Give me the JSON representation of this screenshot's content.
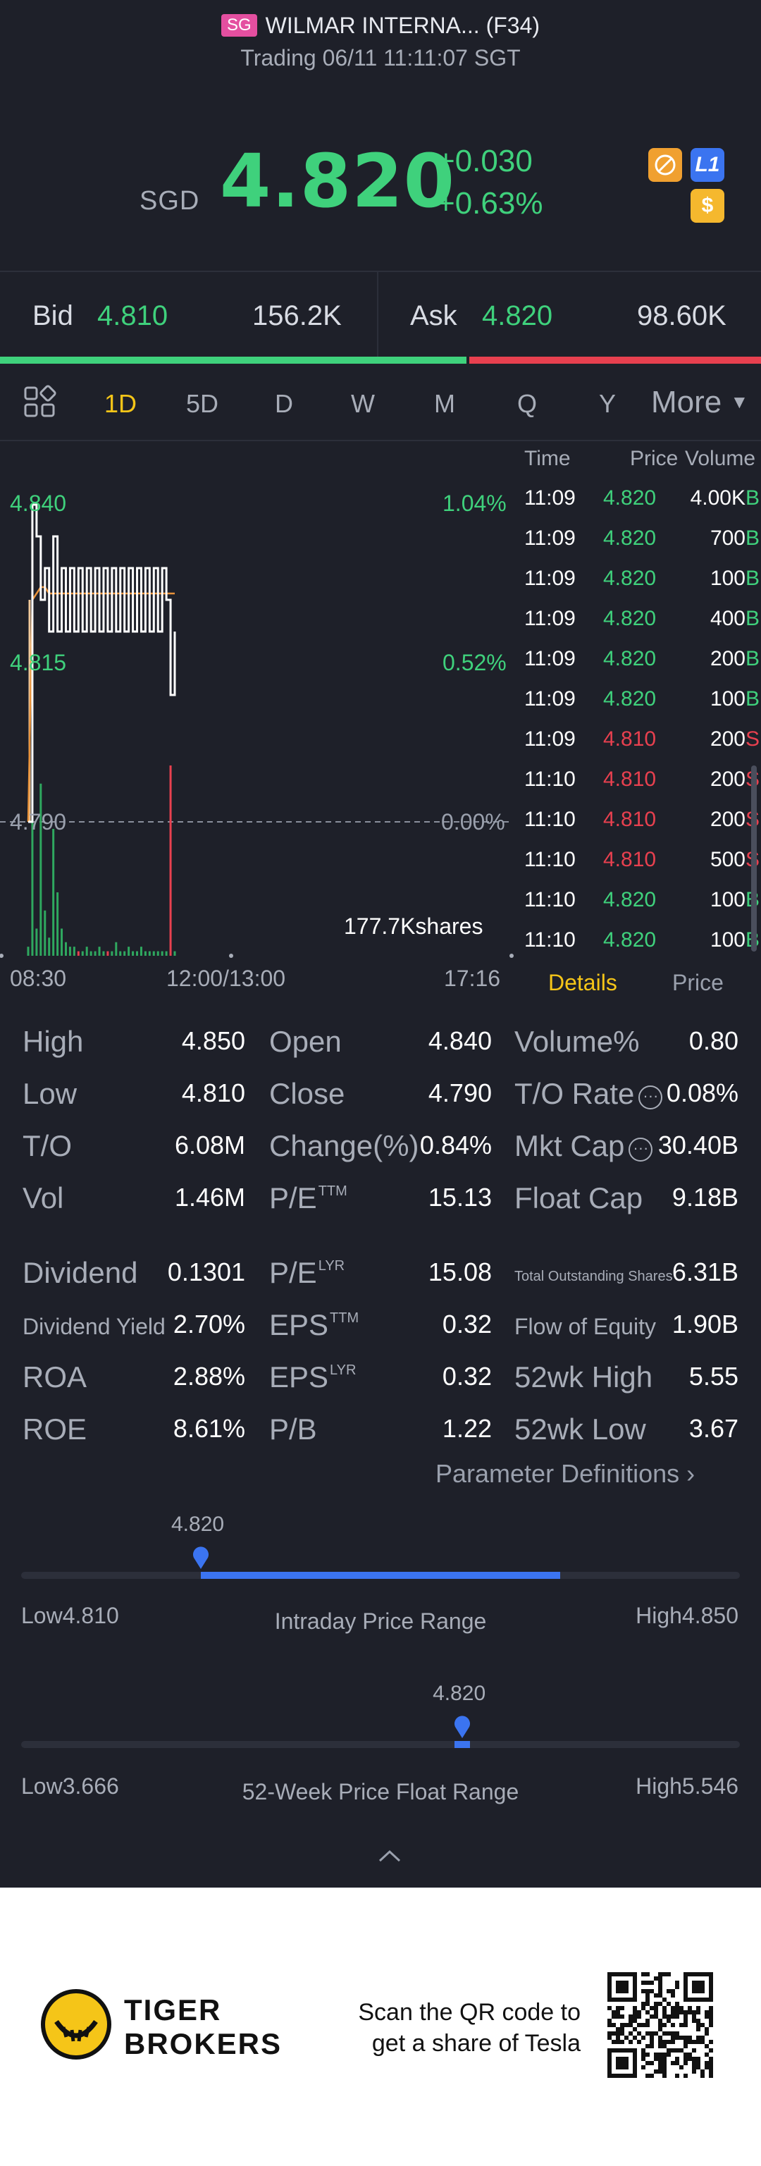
{
  "header": {
    "market_badge": "SG",
    "title": "WILMAR INTERNA... (F34)",
    "status": "Trading 06/11 11:11:07 SGT",
    "currency": "SGD",
    "price": "4.820",
    "change_abs": "+0.030",
    "change_pct": "+0.63%",
    "icons": [
      "hide-icon",
      "level1-icon",
      "dollar-icon"
    ],
    "icon_l1_label": "L1",
    "icon_dollar_label": "$"
  },
  "bid_ask": {
    "bid_label": "Bid",
    "bid_price": "4.810",
    "bid_volume": "156.2K",
    "ask_label": "Ask",
    "ask_price": "4.820",
    "ask_volume": "98.60K",
    "bid_share": 0.613
  },
  "tabs": {
    "items": [
      "1D",
      "5D",
      "D",
      "W",
      "M",
      "Q",
      "Y"
    ],
    "active": "1D",
    "more": "More"
  },
  "chart": {
    "price_labels": [
      "4.840",
      "4.815",
      "4.790"
    ],
    "pct_labels": [
      "1.04%",
      "0.52%",
      "0.00%"
    ],
    "volume_label": "177.7Kshares",
    "time_labels": [
      "08:30",
      "12:00/13:00",
      "17:16"
    ]
  },
  "chart_data": {
    "type": "line",
    "title": "",
    "xlabel": "",
    "ylabel": "",
    "ylim": [
      4.79,
      4.84
    ],
    "grid": false,
    "series": [
      {
        "values": [
          4.79,
          4.84,
          4.835,
          4.825,
          4.83,
          4.82,
          4.835,
          4.82,
          4.83,
          4.82,
          4.83,
          4.82,
          4.83,
          4.82,
          4.83,
          4.82,
          4.83,
          4.82,
          4.83,
          4.82,
          4.83,
          4.82,
          4.83,
          4.82,
          4.83,
          4.82,
          4.83,
          4.82,
          4.83,
          4.82,
          4.83,
          4.82,
          4.83,
          4.825,
          4.81,
          4.82
        ]
      },
      {
        "values": [
          4.79,
          4.825,
          4.826,
          4.827,
          4.827,
          4.826,
          4.826,
          4.826,
          4.826,
          4.826,
          4.826,
          4.826,
          4.826,
          4.826,
          4.826,
          4.826,
          4.826,
          4.826,
          4.826,
          4.826,
          4.826,
          4.826,
          4.826,
          4.826,
          4.826,
          4.826,
          4.826,
          4.826,
          4.826,
          4.826,
          4.826,
          4.826,
          4.826,
          4.826,
          4.826,
          4.826
        ]
      }
    ],
    "volumes": [
      2,
      30,
      6,
      38,
      10,
      4,
      28,
      14,
      6,
      3,
      2,
      2,
      1,
      1,
      2,
      1,
      1,
      2,
      1,
      1,
      1,
      3,
      1,
      1,
      2,
      1,
      1,
      2,
      1,
      1,
      1,
      1,
      1,
      1,
      42,
      1
    ],
    "volume_sides": [
      "g",
      "g",
      "g",
      "g",
      "g",
      "g",
      "g",
      "g",
      "g",
      "g",
      "g",
      "g",
      "r",
      "g",
      "g",
      "g",
      "g",
      "g",
      "g",
      "r",
      "g",
      "g",
      "g",
      "g",
      "g",
      "g",
      "g",
      "g",
      "g",
      "g",
      "g",
      "g",
      "g",
      "g",
      "r",
      "g"
    ],
    "prev_close": 4.79
  },
  "trades": {
    "headers": [
      "Time",
      "Price",
      "Volume"
    ],
    "rows": [
      {
        "time": "11:09",
        "price": "4.820",
        "volume": "4.00K",
        "side": "B"
      },
      {
        "time": "11:09",
        "price": "4.820",
        "volume": "700",
        "side": "B"
      },
      {
        "time": "11:09",
        "price": "4.820",
        "volume": "100",
        "side": "B"
      },
      {
        "time": "11:09",
        "price": "4.820",
        "volume": "400",
        "side": "B"
      },
      {
        "time": "11:09",
        "price": "4.820",
        "volume": "200",
        "side": "B"
      },
      {
        "time": "11:09",
        "price": "4.820",
        "volume": "100",
        "side": "B"
      },
      {
        "time": "11:09",
        "price": "4.810",
        "volume": "200",
        "side": "S"
      },
      {
        "time": "11:10",
        "price": "4.810",
        "volume": "200",
        "side": "S"
      },
      {
        "time": "11:10",
        "price": "4.810",
        "volume": "200",
        "side": "S"
      },
      {
        "time": "11:10",
        "price": "4.810",
        "volume": "500",
        "side": "S"
      },
      {
        "time": "11:10",
        "price": "4.820",
        "volume": "100",
        "side": "B"
      },
      {
        "time": "11:10",
        "price": "4.820",
        "volume": "100",
        "side": "B"
      }
    ],
    "tab_details": "Details",
    "tab_price": "Price"
  },
  "stats": {
    "high": {
      "k": "High",
      "v": "4.850"
    },
    "low": {
      "k": "Low",
      "v": "4.810"
    },
    "to": {
      "k": "T/O",
      "v": "6.08M"
    },
    "vol": {
      "k": "Vol",
      "v": "1.46M"
    },
    "open": {
      "k": "Open",
      "v": "4.840"
    },
    "close": {
      "k": "Close",
      "v": "4.790"
    },
    "change": {
      "k": "Change(%)",
      "v": "0.84%"
    },
    "pe_ttm": {
      "k": "P/E",
      "sup": "TTM",
      "v": "15.13"
    },
    "volume_pct": {
      "k": "Volume%",
      "v": "0.80"
    },
    "to_rate": {
      "k": "T/O Rate",
      "v": "0.08%"
    },
    "mkt_cap": {
      "k": "Mkt Cap",
      "v": "30.40B"
    },
    "float_cap": {
      "k": "Float Cap",
      "v": "9.18B"
    },
    "dividend": {
      "k": "Dividend",
      "v": "0.1301"
    },
    "div_yield": {
      "k": "Dividend Yield",
      "v": "2.70%"
    },
    "roa": {
      "k": "ROA",
      "v": "2.88%"
    },
    "roe": {
      "k": "ROE",
      "v": "8.61%"
    },
    "pe_lyr": {
      "k": "P/E",
      "sup": "LYR",
      "v": "15.08"
    },
    "eps_ttm": {
      "k": "EPS",
      "sup": "TTM",
      "v": "0.32"
    },
    "eps_lyr": {
      "k": "EPS",
      "sup": "LYR",
      "v": "0.32"
    },
    "pb": {
      "k": "P/B",
      "v": "1.22"
    },
    "total_shares": {
      "k": "Total Outstanding Shares",
      "v": "6.31B"
    },
    "flow_equity": {
      "k": "Flow of Equity",
      "v": "1.90B"
    },
    "wk52_high": {
      "k": "52wk High",
      "v": "5.55"
    },
    "wk52_low": {
      "k": "52wk Low",
      "v": "3.67"
    },
    "param_def": "Parameter Definitions"
  },
  "ranges": {
    "intraday": {
      "current": "4.820",
      "low_label": "Low4.810",
      "high_label": "High4.850",
      "caption": "Intraday Price Range",
      "low": 4.81,
      "high": 4.85,
      "open": 4.84,
      "value": 4.82
    },
    "week52": {
      "current": "4.820",
      "low_label": "Low3.666",
      "high_label": "High5.546",
      "caption": "52-Week Price Float Range",
      "low": 3.666,
      "high": 5.546,
      "value": 4.82
    }
  },
  "footer": {
    "brand_line1": "TIGER",
    "brand_line2": "BROKERS",
    "scan_line1": "Scan the QR code to",
    "scan_line2": "get a share of Tesla"
  },
  "colors": {
    "up": "#3fd17c",
    "down": "#e8404f",
    "accent": "#f5c518",
    "blue": "#3b74f0",
    "avg_line": "#e8923a"
  }
}
